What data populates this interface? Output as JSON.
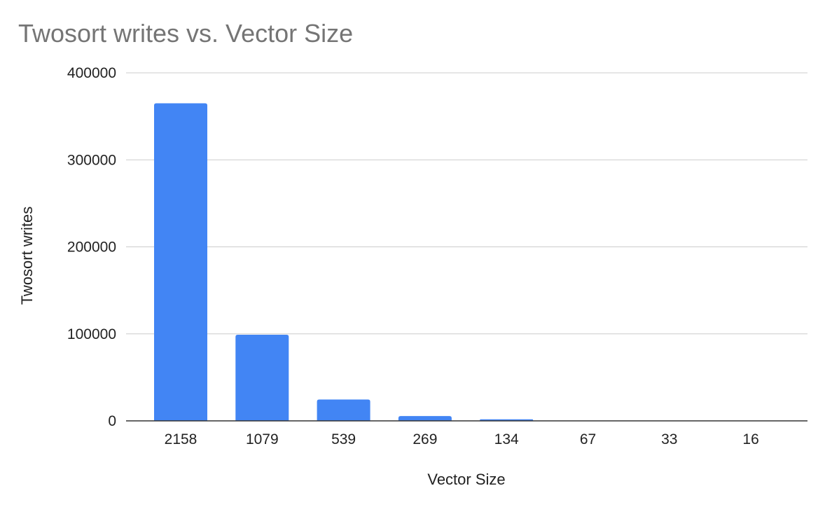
{
  "chart_data": {
    "type": "bar",
    "title": "Twosort writes vs. Vector Size",
    "xlabel": "Vector Size",
    "ylabel": "Twosort writes",
    "categories": [
      "2158",
      "1079",
      "539",
      "269",
      "134",
      "67",
      "33",
      "16"
    ],
    "series": [
      {
        "values": [
          365000,
          99000,
          24500,
          5500,
          1800,
          450,
          110,
          30
        ],
        "color": "#4285f4"
      }
    ],
    "ylim": [
      0,
      400000
    ],
    "yticks": [
      "0",
      "100000",
      "200000",
      "300000",
      "400000"
    ],
    "grid": true,
    "legend": "none"
  }
}
